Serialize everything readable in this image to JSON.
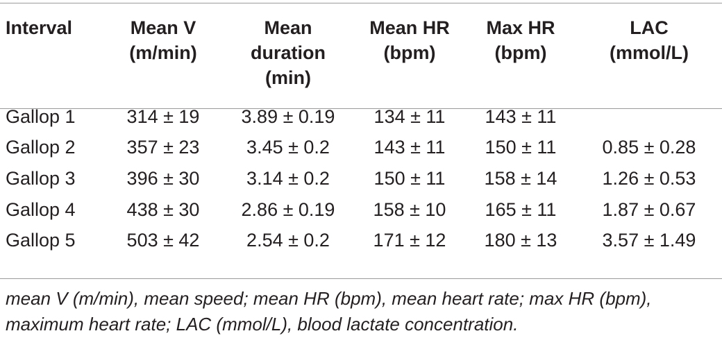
{
  "columns": [
    "Interval",
    "Mean V (m/min)",
    "Mean duration (min)",
    "Mean HR (bpm)",
    "Max HR (bpm)",
    "LAC (mmol/L)"
  ],
  "header_lines": [
    [
      "Interval"
    ],
    [
      "Mean V",
      "(m/min)"
    ],
    [
      "Mean",
      "duration",
      "(min)"
    ],
    [
      "Mean HR",
      "(bpm)"
    ],
    [
      "Max HR",
      "(bpm)"
    ],
    [
      "LAC",
      "(mmol/L)"
    ]
  ],
  "rows": [
    [
      "Gallop 1",
      "314 ± 19",
      "3.89 ± 0.19",
      "134 ± 11",
      "143 ± 11",
      ""
    ],
    [
      "Gallop 2",
      "357 ± 23",
      "3.45 ± 0.2",
      "143 ± 11",
      "150 ± 11",
      "0.85 ± 0.28"
    ],
    [
      "Gallop 3",
      "396 ± 30",
      "3.14 ± 0.2",
      "150 ± 11",
      "158 ± 14",
      "1.26 ± 0.53"
    ],
    [
      "Gallop 4",
      "438 ± 30",
      "2.86 ± 0.19",
      "158 ± 10",
      "165 ± 11",
      "1.87 ± 0.67"
    ],
    [
      "Gallop 5",
      "503 ± 42",
      "2.54 ± 0.2",
      "171 ± 12",
      "180 ± 13",
      "3.57 ± 1.49"
    ]
  ],
  "footnote": "mean V (m/min), mean speed; mean HR (bpm), mean heart rate; max HR (bpm), maximum heart rate; LAC (mmol/L), blood lactate concentration."
}
